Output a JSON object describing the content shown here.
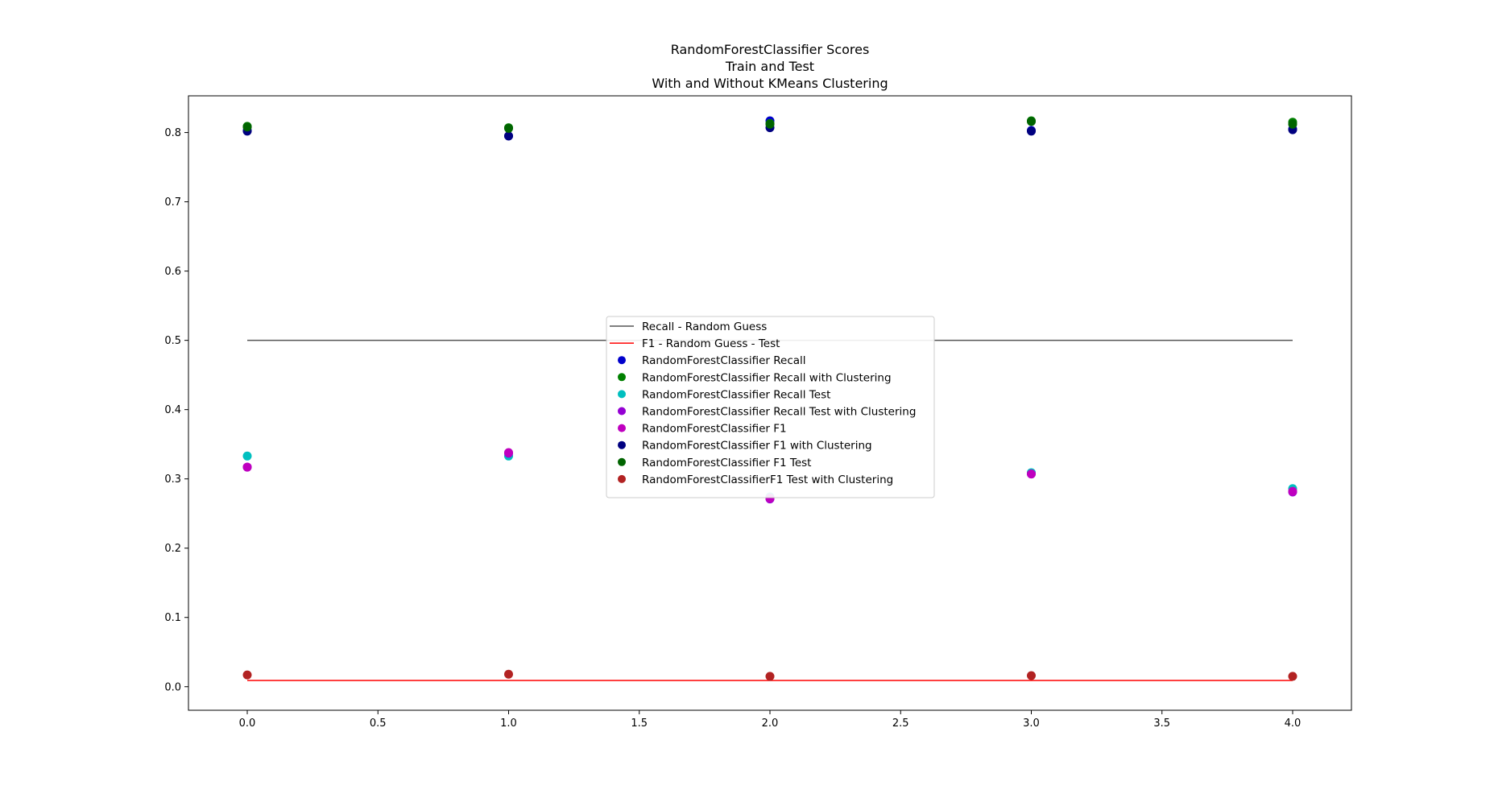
{
  "chart_data": {
    "type": "scatter",
    "title_lines": [
      "RandomForestClassifier Scores",
      "Train and Test",
      "With and Without KMeans Clustering"
    ],
    "xlabel": "",
    "ylabel": "",
    "xlim": [
      -0.225,
      4.225
    ],
    "ylim": [
      -0.034,
      0.853
    ],
    "x_ticks": [
      0.0,
      0.5,
      1.0,
      1.5,
      2.0,
      2.5,
      3.0,
      3.5,
      4.0
    ],
    "x_tick_labels": [
      "0.0",
      "0.5",
      "1.0",
      "1.5",
      "2.0",
      "2.5",
      "3.0",
      "3.5",
      "4.0"
    ],
    "y_ticks": [
      0.0,
      0.1,
      0.2,
      0.3,
      0.4,
      0.5,
      0.6,
      0.7,
      0.8
    ],
    "y_tick_labels": [
      "0.0",
      "0.1",
      "0.2",
      "0.3",
      "0.4",
      "0.5",
      "0.6",
      "0.7",
      "0.8"
    ],
    "grid": false,
    "legend_position": "center",
    "lines": [
      {
        "name": "Recall - Random Guess",
        "color": "#555555",
        "x": [
          0,
          4
        ],
        "y": [
          0.5,
          0.5
        ]
      },
      {
        "name": "F1 - Random Guess - Test",
        "color": "#ff0000",
        "x": [
          0,
          4
        ],
        "y": [
          0.009,
          0.009
        ]
      }
    ],
    "series": [
      {
        "name": "RandomForestClassifier Recall",
        "color": "#0000cc",
        "x": [
          0,
          1,
          2,
          3,
          4
        ],
        "y": [
          0.803,
          0.795,
          0.817,
          0.803,
          0.805
        ]
      },
      {
        "name": "RandomForestClassifier Recall with Clustering",
        "color": "#008000",
        "x": [
          0,
          1,
          2,
          3,
          4
        ],
        "y": [
          0.809,
          0.807,
          0.813,
          0.817,
          0.815
        ]
      },
      {
        "name": "RandomForestClassifier Recall Test",
        "color": "#00bfbf",
        "x": [
          0,
          1,
          2,
          3,
          4
        ],
        "y": [
          0.333,
          0.333,
          0.274,
          0.309,
          0.286
        ]
      },
      {
        "name": "RandomForestClassifier Recall Test with Clustering",
        "color": "#9400d3",
        "x": [
          0,
          1,
          2,
          3,
          4
        ],
        "y": [
          0.317,
          0.337,
          0.271,
          0.307,
          0.281
        ]
      },
      {
        "name": "RandomForestClassifier F1",
        "color": "#bf00bf",
        "x": [
          0,
          1,
          2,
          3,
          4
        ],
        "y": [
          0.317,
          0.338,
          0.272,
          0.307,
          0.282
        ]
      },
      {
        "name": "RandomForestClassifier F1 with Clustering",
        "color": "#000080",
        "x": [
          0,
          1,
          2,
          3,
          4
        ],
        "y": [
          0.802,
          0.795,
          0.807,
          0.802,
          0.804
        ]
      },
      {
        "name": "RandomForestClassifier F1 Test",
        "color": "#006400",
        "x": [
          0,
          1,
          2,
          3,
          4
        ],
        "y": [
          0.808,
          0.806,
          0.812,
          0.816,
          0.812
        ]
      },
      {
        "name": "RandomForestClassifierF1 Test with Clustering",
        "color": "#b22222",
        "x": [
          0,
          1,
          2,
          3,
          4
        ],
        "y": [
          0.017,
          0.018,
          0.015,
          0.016,
          0.015
        ]
      }
    ]
  }
}
